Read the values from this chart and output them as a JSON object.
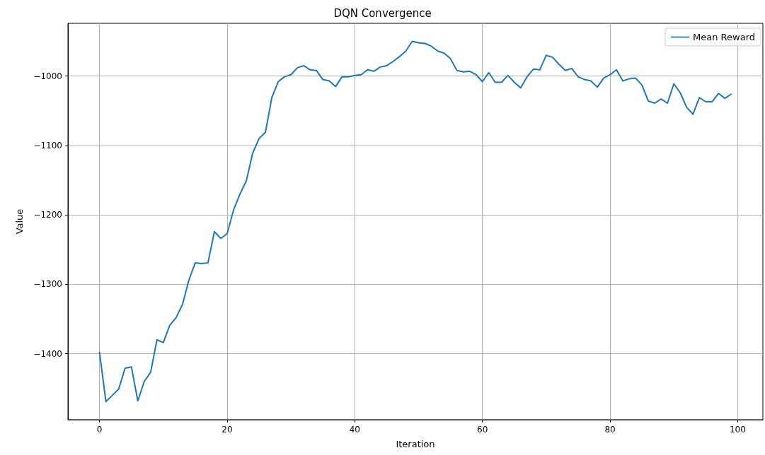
{
  "chart_data": {
    "type": "line",
    "title": "DQN Convergence",
    "xlabel": "Iteration",
    "ylabel": "Value",
    "x": [
      0,
      1,
      2,
      3,
      4,
      5,
      6,
      7,
      8,
      9,
      10,
      11,
      12,
      13,
      14,
      15,
      16,
      17,
      18,
      19,
      20,
      21,
      22,
      23,
      24,
      25,
      26,
      27,
      28,
      29,
      30,
      31,
      32,
      33,
      34,
      35,
      36,
      37,
      38,
      39,
      40,
      41,
      42,
      43,
      44,
      45,
      46,
      47,
      48,
      49,
      50,
      51,
      52,
      53,
      54,
      55,
      56,
      57,
      58,
      59,
      60,
      61,
      62,
      63,
      64,
      65,
      66,
      67,
      68,
      69,
      70,
      71,
      72,
      73,
      74,
      75,
      76,
      77,
      78,
      79,
      80,
      81,
      82,
      83,
      84,
      85,
      86,
      87,
      88,
      89,
      90,
      91,
      92,
      93,
      94,
      95,
      96,
      97,
      98,
      99
    ],
    "series": [
      {
        "name": "Mean Reward",
        "color": "#1f77b4",
        "values": [
          -1398,
          -1469,
          -1460,
          -1451,
          -1421,
          -1419,
          -1468,
          -1440,
          -1427,
          -1380,
          -1384,
          -1359,
          -1348,
          -1329,
          -1294,
          -1269,
          -1270,
          -1269,
          -1224,
          -1234,
          -1227,
          -1193,
          -1170,
          -1151,
          -1111,
          -1090,
          -1081,
          -1031,
          -1008,
          -1001,
          -998,
          -988,
          -985,
          -991,
          -992,
          -1005,
          -1007,
          -1015,
          -1001,
          -1001,
          -999,
          -998,
          -991,
          -993,
          -987,
          -985,
          -979,
          -972,
          -964,
          -950,
          -952,
          -953,
          -957,
          -964,
          -967,
          -975,
          -992,
          -994,
          -993,
          -998,
          -1008,
          -995,
          -1009,
          -1009,
          -999,
          -1009,
          -1017,
          -1001,
          -990,
          -991,
          -970,
          -973,
          -983,
          -992,
          -989,
          -1001,
          -1005,
          -1007,
          -1016,
          -1003,
          -998,
          -991,
          -1007,
          -1004,
          -1003,
          -1013,
          -1036,
          -1039,
          -1033,
          -1039,
          -1011,
          -1024,
          -1045,
          -1055,
          -1031,
          -1037,
          -1037,
          -1025,
          -1032,
          -1026
        ]
      }
    ],
    "xlim": [
      -4.95,
      103.95
    ],
    "xticks": [
      0,
      20,
      40,
      60,
      80,
      100
    ],
    "ylim": [
      -1495,
      -924
    ],
    "yticks": [
      {
        "value": -1400,
        "label": "−1400"
      },
      {
        "value": -1300,
        "label": "−1300"
      },
      {
        "value": -1200,
        "label": "−1200"
      },
      {
        "value": -1100,
        "label": "−1100"
      },
      {
        "value": -1000,
        "label": "−1000"
      }
    ],
    "grid": true,
    "legend": "top right",
    "marker": "none",
    "line_style": "solid"
  }
}
